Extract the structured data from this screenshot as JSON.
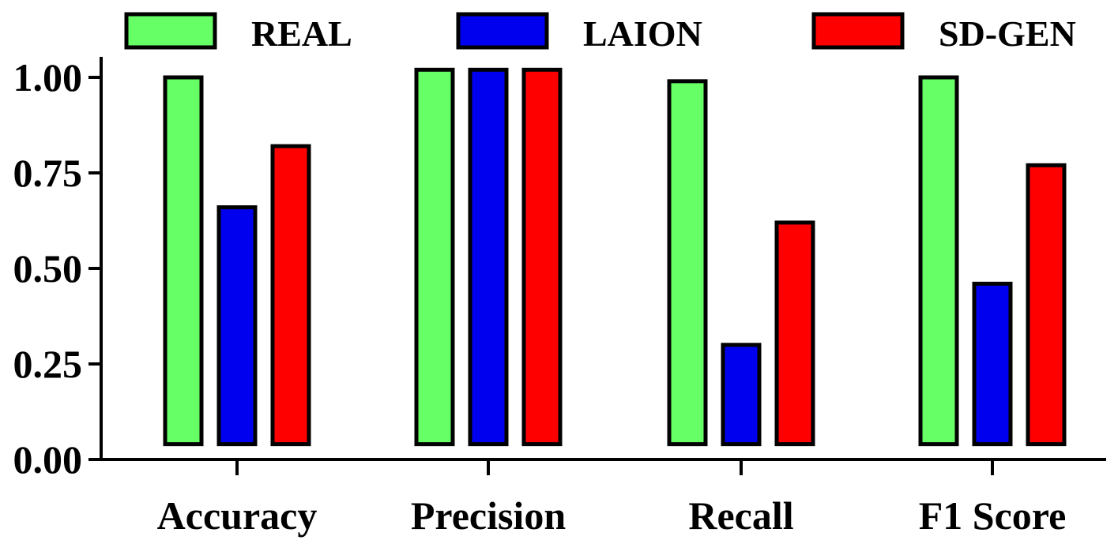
{
  "chart_data": {
    "type": "bar",
    "categories": [
      "Accuracy",
      "Precision",
      "Recall",
      "F1 Score"
    ],
    "series": [
      {
        "name": "REAL",
        "color": "#66ff66",
        "values": [
          1.0,
          1.02,
          0.99,
          1.0
        ]
      },
      {
        "name": "LAION",
        "color": "#0000ee",
        "values": [
          0.66,
          1.02,
          0.3,
          0.46
        ]
      },
      {
        "name": "SD-GEN",
        "color": "#ff0000",
        "values": [
          0.82,
          1.02,
          0.62,
          0.77
        ]
      }
    ],
    "y_ticks": [
      "0.00",
      "0.25",
      "0.50",
      "0.75",
      "1.00"
    ],
    "ylim": [
      0,
      1.05
    ],
    "bar_baseline": 0.04,
    "xlabel": "",
    "ylabel": "",
    "legend_position": "top",
    "grid": false
  }
}
